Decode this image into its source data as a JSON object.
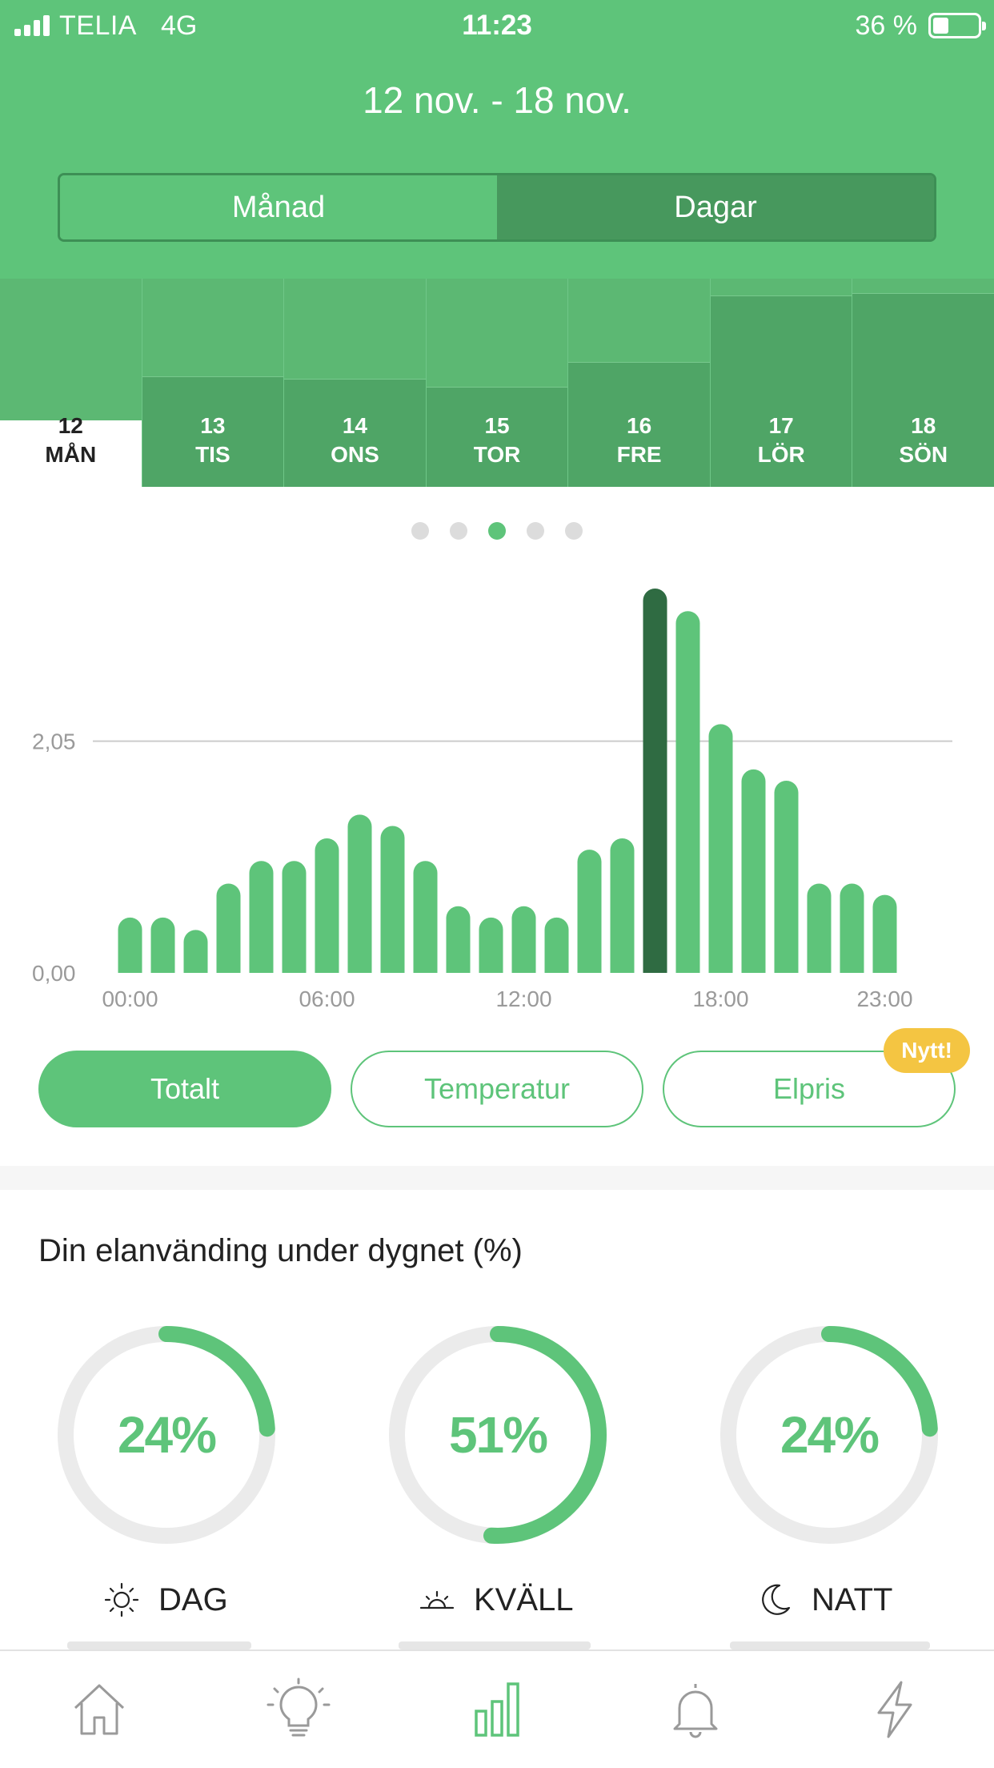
{
  "status_bar": {
    "carrier": "TELIA",
    "network": "4G",
    "time": "11:23",
    "battery_text": "36 %",
    "battery_level_percent": 36
  },
  "header": {
    "date_range": "12 nov. - 18 nov.",
    "segment": {
      "options": [
        "Månad",
        "Dagar"
      ],
      "selected": "Dagar"
    }
  },
  "days": [
    {
      "num": "12",
      "name": "MÅN",
      "selected": true,
      "level": 0.32
    },
    {
      "num": "13",
      "name": "TIS",
      "selected": false,
      "level": 0.53
    },
    {
      "num": "14",
      "name": "ONS",
      "selected": false,
      "level": 0.52
    },
    {
      "num": "15",
      "name": "TOR",
      "selected": false,
      "level": 0.48
    },
    {
      "num": "16",
      "name": "FRE",
      "selected": false,
      "level": 0.6
    },
    {
      "num": "17",
      "name": "LÖR",
      "selected": false,
      "level": 0.92
    },
    {
      "num": "18",
      "name": "SÖN",
      "selected": false,
      "level": 0.93
    }
  ],
  "pagination": {
    "count": 5,
    "active_index": 2
  },
  "chart_data": {
    "type": "bar",
    "categories": [
      "00:00",
      "01:00",
      "02:00",
      "03:00",
      "04:00",
      "05:00",
      "06:00",
      "07:00",
      "08:00",
      "09:00",
      "10:00",
      "11:00",
      "12:00",
      "13:00",
      "14:00",
      "15:00",
      "16:00",
      "17:00",
      "18:00",
      "19:00",
      "20:00",
      "21:00",
      "22:00",
      "23:00"
    ],
    "values": [
      0.49,
      0.49,
      0.38,
      0.79,
      0.99,
      0.99,
      1.19,
      1.4,
      1.3,
      0.99,
      0.59,
      0.49,
      0.59,
      0.49,
      1.09,
      1.19,
      3.4,
      3.2,
      2.2,
      1.8,
      1.7,
      0.79,
      0.79,
      0.69
    ],
    "highlight_index": 16,
    "ytick_labels": [
      "0,00",
      "2,05"
    ],
    "ytick_values": [
      0,
      2.05
    ],
    "xtick_labels": [
      "00:00",
      "06:00",
      "12:00",
      "18:00",
      "23:00"
    ],
    "xtick_indices": [
      0,
      6,
      12,
      18,
      23
    ],
    "ylim": [
      0,
      3.4
    ],
    "colors": {
      "bar": "#5ec47a",
      "highlight": "#2f6b42",
      "grid": "#cccccc",
      "tick_text": "#9a9a9a"
    }
  },
  "filters": {
    "items": [
      {
        "label": "Totalt",
        "active": true
      },
      {
        "label": "Temperatur",
        "active": false
      },
      {
        "label": "Elpris",
        "active": false,
        "badge": "Nytt!"
      }
    ]
  },
  "usage": {
    "title": "Din elanvänding under dygnet (%)",
    "rings": [
      {
        "value_text": "24%",
        "fraction": 0.24,
        "label": "DAG",
        "icon": "sun-icon"
      },
      {
        "value_text": "51%",
        "fraction": 0.51,
        "label": "KVÄLL",
        "icon": "sunset-icon"
      },
      {
        "value_text": "24%",
        "fraction": 0.24,
        "label": "NATT",
        "icon": "moon-icon"
      }
    ]
  },
  "tabbar": {
    "items": [
      "home-icon",
      "lightbulb-icon",
      "bar-chart-icon",
      "bell-icon",
      "lightning-icon"
    ],
    "active_index": 2
  },
  "colors": {
    "accent": "#5ec47a",
    "accent_dark": "#47985d",
    "badge": "#f4c542",
    "ring_track": "#ebebeb"
  }
}
